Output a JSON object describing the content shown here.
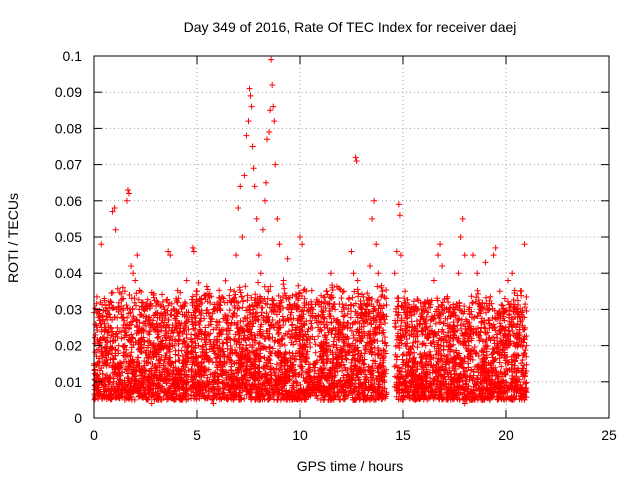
{
  "chart_data": {
    "type": "scatter",
    "title": "Day 349 of 2016, Rate Of TEC Index for receiver daej",
    "xlabel": "GPS time / hours",
    "ylabel": "ROTI / TECUs",
    "xlim": [
      0,
      25
    ],
    "ylim": [
      0,
      0.1
    ],
    "xticks": [
      0,
      5,
      10,
      15,
      20,
      25
    ],
    "xtick_labels": [
      "0",
      "5",
      "10",
      "15",
      "20",
      "25"
    ],
    "yticks": [
      0,
      0.01,
      0.02,
      0.03,
      0.04,
      0.05,
      0.06,
      0.07,
      0.08,
      0.09,
      0.1
    ],
    "ytick_labels": [
      "0",
      "0.01",
      "0.02",
      "0.03",
      "0.04",
      "0.05",
      "0.06",
      "0.07",
      "0.08",
      "0.09",
      "0.1"
    ],
    "grid": true,
    "marker": "+",
    "color": "#ff0000",
    "series": [
      {
        "points": [
          [
            0.0,
            0.015
          ],
          [
            0.1,
            0.012
          ],
          [
            0.2,
            0.021
          ],
          [
            0.3,
            0.028
          ],
          [
            0.35,
            0.048
          ],
          [
            0.5,
            0.033
          ],
          [
            0.6,
            0.018
          ],
          [
            0.7,
            0.01
          ],
          [
            0.8,
            0.025
          ],
          [
            0.9,
            0.057
          ],
          [
            1.0,
            0.058
          ],
          [
            1.05,
            0.052
          ],
          [
            1.1,
            0.03
          ],
          [
            1.2,
            0.02
          ],
          [
            1.3,
            0.015
          ],
          [
            1.4,
            0.036
          ],
          [
            1.5,
            0.035
          ],
          [
            1.6,
            0.06
          ],
          [
            1.65,
            0.063
          ],
          [
            1.7,
            0.062
          ],
          [
            1.8,
            0.042
          ],
          [
            1.9,
            0.04
          ],
          [
            2.0,
            0.038
          ],
          [
            2.1,
            0.045
          ],
          [
            2.2,
            0.03
          ],
          [
            2.3,
            0.022
          ],
          [
            2.5,
            0.018
          ],
          [
            2.7,
            0.008
          ],
          [
            2.9,
            0.02
          ],
          [
            3.1,
            0.025
          ],
          [
            3.3,
            0.012
          ],
          [
            3.5,
            0.024
          ],
          [
            3.6,
            0.046
          ],
          [
            3.7,
            0.045
          ],
          [
            3.9,
            0.03
          ],
          [
            4.1,
            0.016
          ],
          [
            4.3,
            0.01
          ],
          [
            4.5,
            0.038
          ],
          [
            4.6,
            0.02
          ],
          [
            4.8,
            0.047
          ],
          [
            4.85,
            0.046
          ],
          [
            5.0,
            0.035
          ],
          [
            5.2,
            0.015
          ],
          [
            5.4,
            0.025
          ],
          [
            5.6,
            0.01
          ],
          [
            5.8,
            0.03
          ],
          [
            6.0,
            0.02
          ],
          [
            6.2,
            0.012
          ],
          [
            6.4,
            0.028
          ],
          [
            6.6,
            0.018
          ],
          [
            6.8,
            0.035
          ],
          [
            6.9,
            0.045
          ],
          [
            7.0,
            0.058
          ],
          [
            7.1,
            0.064
          ],
          [
            7.2,
            0.05
          ],
          [
            7.3,
            0.067
          ],
          [
            7.4,
            0.078
          ],
          [
            7.5,
            0.082
          ],
          [
            7.55,
            0.091
          ],
          [
            7.6,
            0.089
          ],
          [
            7.65,
            0.086
          ],
          [
            7.7,
            0.075
          ],
          [
            7.75,
            0.069
          ],
          [
            7.8,
            0.064
          ],
          [
            7.9,
            0.055
          ],
          [
            8.0,
            0.045
          ],
          [
            8.1,
            0.04
          ],
          [
            8.2,
            0.052
          ],
          [
            8.3,
            0.06
          ],
          [
            8.35,
            0.065
          ],
          [
            8.4,
            0.077
          ],
          [
            8.5,
            0.079
          ],
          [
            8.55,
            0.085
          ],
          [
            8.6,
            0.099
          ],
          [
            8.65,
            0.092
          ],
          [
            8.7,
            0.086
          ],
          [
            8.75,
            0.082
          ],
          [
            8.8,
            0.07
          ],
          [
            8.9,
            0.055
          ],
          [
            9.0,
            0.048
          ],
          [
            9.2,
            0.038
          ],
          [
            9.4,
            0.044
          ],
          [
            9.6,
            0.03
          ],
          [
            9.8,
            0.025
          ],
          [
            10.0,
            0.05
          ],
          [
            10.1,
            0.048
          ],
          [
            10.3,
            0.035
          ],
          [
            10.5,
            0.022
          ],
          [
            10.7,
            0.015
          ],
          [
            10.9,
            0.028
          ],
          [
            11.1,
            0.02
          ],
          [
            11.3,
            0.035
          ],
          [
            11.5,
            0.04
          ],
          [
            11.7,
            0.03
          ],
          [
            11.9,
            0.018
          ],
          [
            12.1,
            0.025
          ],
          [
            12.3,
            0.012
          ],
          [
            12.5,
            0.046
          ],
          [
            12.6,
            0.04
          ],
          [
            12.7,
            0.072
          ],
          [
            12.75,
            0.071
          ],
          [
            12.8,
            0.038
          ],
          [
            13.0,
            0.03
          ],
          [
            13.2,
            0.02
          ],
          [
            13.4,
            0.042
          ],
          [
            13.5,
            0.055
          ],
          [
            13.6,
            0.06
          ],
          [
            13.7,
            0.048
          ],
          [
            13.8,
            0.04
          ],
          [
            14.0,
            0.035
          ],
          [
            14.2,
            0.02
          ],
          [
            14.6,
            0.04
          ],
          [
            14.7,
            0.046
          ],
          [
            14.8,
            0.059
          ],
          [
            14.85,
            0.056
          ],
          [
            14.9,
            0.045
          ],
          [
            15.1,
            0.035
          ],
          [
            15.3,
            0.025
          ],
          [
            15.5,
            0.03
          ],
          [
            15.7,
            0.015
          ],
          [
            15.9,
            0.028
          ],
          [
            16.1,
            0.02
          ],
          [
            16.3,
            0.032
          ],
          [
            16.5,
            0.038
          ],
          [
            16.7,
            0.045
          ],
          [
            16.8,
            0.048
          ],
          [
            16.9,
            0.042
          ],
          [
            17.1,
            0.03
          ],
          [
            17.3,
            0.02
          ],
          [
            17.5,
            0.012
          ],
          [
            17.7,
            0.04
          ],
          [
            17.8,
            0.05
          ],
          [
            17.9,
            0.055
          ],
          [
            18.0,
            0.045
          ],
          [
            18.2,
            0.03
          ],
          [
            18.4,
            0.045
          ],
          [
            18.6,
            0.04
          ],
          [
            18.8,
            0.025
          ],
          [
            19.0,
            0.043
          ],
          [
            19.2,
            0.03
          ],
          [
            19.4,
            0.045
          ],
          [
            19.5,
            0.047
          ],
          [
            19.7,
            0.035
          ],
          [
            19.9,
            0.02
          ],
          [
            20.1,
            0.038
          ],
          [
            20.3,
            0.04
          ],
          [
            20.5,
            0.03
          ],
          [
            20.7,
            0.035
          ],
          [
            20.9,
            0.048
          ],
          [
            21.0,
            0.02
          ],
          [
            0.2,
            0.008
          ],
          [
            0.6,
            0.006
          ],
          [
            1.2,
            0.007
          ],
          [
            2.0,
            0.009
          ],
          [
            2.8,
            0.004
          ],
          [
            3.4,
            0.007
          ],
          [
            4.0,
            0.006
          ],
          [
            5.2,
            0.006
          ],
          [
            5.8,
            0.004
          ],
          [
            6.6,
            0.007
          ],
          [
            7.4,
            0.008
          ],
          [
            8.2,
            0.006
          ],
          [
            9.0,
            0.007
          ],
          [
            9.8,
            0.006
          ],
          [
            10.6,
            0.007
          ],
          [
            11.4,
            0.005
          ],
          [
            12.2,
            0.006
          ],
          [
            13.0,
            0.007
          ],
          [
            13.8,
            0.006
          ],
          [
            14.8,
            0.007
          ],
          [
            15.6,
            0.005
          ],
          [
            16.4,
            0.007
          ],
          [
            17.2,
            0.006
          ],
          [
            18.0,
            0.004
          ],
          [
            18.8,
            0.006
          ],
          [
            19.6,
            0.007
          ],
          [
            20.4,
            0.006
          ],
          [
            20.9,
            0.005
          ]
        ]
      }
    ],
    "dense_bands": [
      {
        "x_start": 0.0,
        "x_end": 4.6,
        "y_low": 0.005,
        "y_high": 0.032
      },
      {
        "x_start": 4.7,
        "x_end": 14.2,
        "y_low": 0.005,
        "y_high": 0.034
      },
      {
        "x_start": 14.6,
        "x_end": 21.0,
        "y_low": 0.005,
        "y_high": 0.032
      }
    ]
  }
}
